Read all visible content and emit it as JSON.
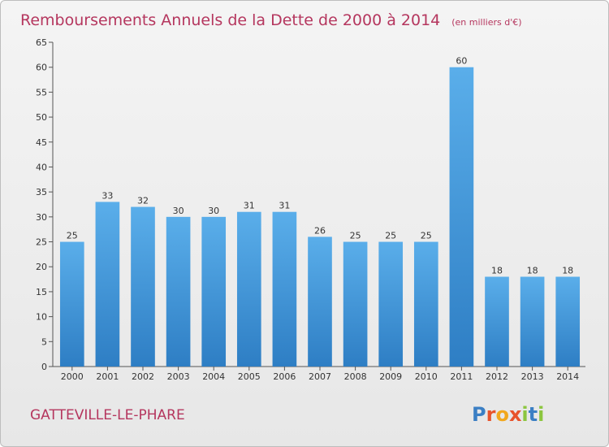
{
  "chart_data": {
    "type": "bar",
    "title": "Remboursements Annuels de la Dette de 2000 à 2014",
    "unit_note": "(en milliers d'€)",
    "categories": [
      "2000",
      "2001",
      "2002",
      "2003",
      "2004",
      "2005",
      "2006",
      "2007",
      "2008",
      "2009",
      "2010",
      "2011",
      "2012",
      "2013",
      "2014"
    ],
    "values": [
      25,
      33,
      32,
      30,
      30,
      31,
      31,
      26,
      25,
      25,
      25,
      60,
      18,
      18,
      18
    ],
    "ylim": [
      0,
      65
    ],
    "yticks": [
      0,
      5,
      10,
      15,
      20,
      25,
      30,
      35,
      40,
      45,
      50,
      55,
      60,
      65
    ],
    "grid": false,
    "legend": "none",
    "bar_color": "#4f9fe0"
  },
  "commune": "GATTEVILLE-LE-PHARE",
  "logo": {
    "letters": [
      "P",
      "r",
      "o",
      "x",
      "i",
      "t",
      "i"
    ],
    "colors": [
      "#3b7fc4",
      "#e8532b",
      "#f2a81d",
      "#e8532b",
      "#8cc63f",
      "#3b7fc4",
      "#8cc63f"
    ]
  }
}
